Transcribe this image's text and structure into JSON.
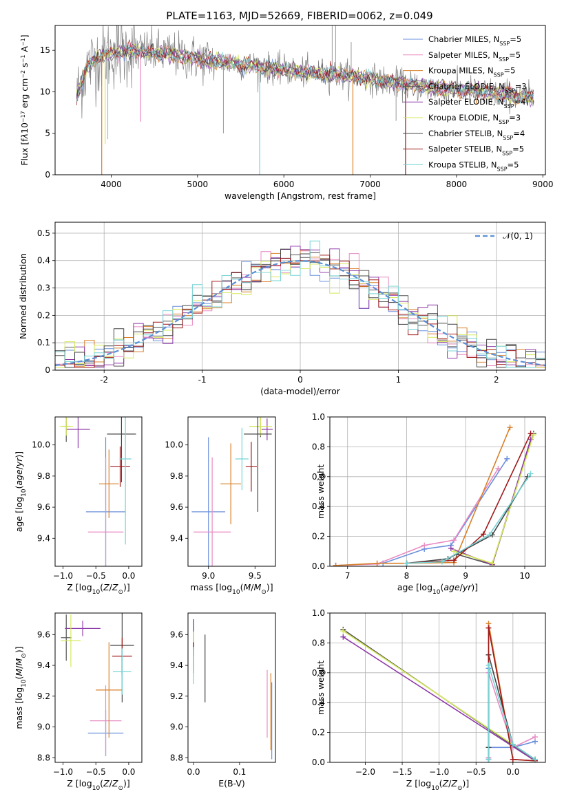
{
  "figure": {
    "title": "PLATE=1163, MJD=52669, FIBERID=0062, z=0.049"
  },
  "colors": {
    "Chabrier MILES": "#6a8fdc",
    "Salpeter MILES": "#e88ac2",
    "Kroupa MILES": "#d9802a",
    "Chabrier ELODIE": "#555555",
    "Salpeter ELODIE": "#8e3aa8",
    "Kroupa ELODIE": "#d6e85a",
    "Chabrier STELIB": "#444444",
    "Salpeter STELIB": "#a01818",
    "Kroupa STELIB": "#76d3d6"
  },
  "chart_data": [
    {
      "id": "spectrum",
      "type": "line",
      "xlabel": "wavelength [Angstrom, rest frame]",
      "ylabel_html": "Flux [f<tspan font-style='italic'>λ</tspan>10<tspan baseline-shift='super' font-size='8'>−17</tspan> erg cm<tspan baseline-shift='super' font-size='8'>−2</tspan> s<tspan baseline-shift='super' font-size='8'>−1</tspan> A<tspan baseline-shift='super' font-size='8'>−1</tspan>]",
      "xlim": [
        3350,
        9030
      ],
      "ylim": [
        0,
        18
      ],
      "xticks": [
        4000,
        5000,
        6000,
        7000,
        8000,
        9000
      ],
      "yticks": [
        0,
        5,
        10,
        15
      ],
      "grid": false,
      "legend": "top-right",
      "legend_entries": [
        {
          "model": "Chabrier MILES",
          "label": "Chabrier MILES, N",
          "sub": "SSP",
          "n": "=5"
        },
        {
          "model": "Salpeter MILES",
          "label": "Salpeter MILES, N",
          "sub": "SSP",
          "n": "=5"
        },
        {
          "model": "Kroupa MILES",
          "label": "Kroupa MILES, N",
          "sub": "SSP",
          "n": "=5"
        },
        {
          "model": "Chabrier ELODIE",
          "label": "Chabrier ELODIE, N",
          "sub": "SSP",
          "n": "=3"
        },
        {
          "model": "Salpeter ELODIE",
          "label": "Salpeter ELODIE, N",
          "sub": "SSP",
          "n": "=4"
        },
        {
          "model": "Kroupa ELODIE",
          "label": "Kroupa ELODIE, N",
          "sub": "SSP",
          "n": "=3"
        },
        {
          "model": "Chabrier STELIB",
          "label": "Chabrier STELIB, N",
          "sub": "SSP",
          "n": "=4"
        },
        {
          "model": "Salpeter STELIB",
          "label": "Salpeter STELIB, N",
          "sub": "SSP",
          "n": "=5"
        },
        {
          "model": "Kroupa STELIB",
          "label": "Kroupa STELIB, N",
          "sub": "SSP",
          "n": "=5"
        }
      ],
      "continuum": {
        "x": [
          3600,
          3650,
          3700,
          3800,
          3900,
          4000,
          4100,
          4200,
          4300,
          4500,
          4700,
          5000,
          5300,
          5600,
          6000,
          6300,
          6600,
          7000,
          7400,
          7800,
          8200,
          8600,
          8900
        ],
        "y": [
          9.4,
          11.0,
          12.6,
          13.8,
          14.4,
          14.6,
          14.8,
          15.0,
          14.9,
          14.7,
          14.5,
          14.0,
          13.6,
          13.2,
          12.6,
          12.3,
          12.1,
          11.6,
          10.9,
          10.4,
          10.1,
          9.7,
          9.2
        ]
      },
      "data_spikes": [
        {
          "x": 5300,
          "y": 5.0
        },
        {
          "x": 6560,
          "y": 18.0
        },
        {
          "x": 6600,
          "y": 18.0
        },
        {
          "x": 6780,
          "y": 16.0
        },
        {
          "x": 7300,
          "y": 6.5
        },
        {
          "x": 8580,
          "y": 8.3
        }
      ],
      "model_drops": [
        {
          "x": 3890,
          "y": 0,
          "model": "Kroupa MILES"
        },
        {
          "x": 3960,
          "y": 4.3,
          "model": "Kroupa STELIB"
        },
        {
          "x": 3930,
          "y": 3.7,
          "model": "Kroupa ELODIE"
        },
        {
          "x": 4340,
          "y": 6.4,
          "model": "Salpeter MILES"
        },
        {
          "x": 5720,
          "y": 0,
          "model": "Kroupa STELIB"
        },
        {
          "x": 6800,
          "y": 0,
          "model": "Kroupa MILES"
        },
        {
          "x": 7410,
          "y": 0,
          "model": "Salpeter STELIB"
        }
      ]
    },
    {
      "id": "residuals",
      "type": "histogram",
      "xlabel": "(data-model)/error",
      "ylabel": "Normed distribution",
      "xlim": [
        -2.5,
        2.5
      ],
      "ylim": [
        0,
        0.54
      ],
      "xticks": [
        -2,
        -1,
        0,
        1,
        2
      ],
      "yticks": [
        0.0,
        0.1,
        0.2,
        0.3,
        0.4,
        0.5
      ],
      "grid": true,
      "legend": "top-right",
      "legend_label": "(0, 1)",
      "legend_prefix": "𝒩",
      "bin_width": 0.1,
      "reference_curve": "normal(0,1)"
    },
    {
      "id": "age-vs-Z",
      "type": "errorbar",
      "xlabel": "Z [log<tspan baseline-shift='sub' font-size='9'>10</tspan>(<tspan font-style='italic'>Z</tspan>/<tspan font-style='italic'>Z</tspan><tspan baseline-shift='sub' font-size='9'>⊙</tspan>)]",
      "ylabel": "age  [log<tspan baseline-shift='sub' font-size='9'>10</tspan>(<tspan font-style='italic'>age</tspan>/<tspan font-style='italic'>yr</tspan>)]",
      "xlim": [
        -1.12,
        0.2
      ],
      "ylim": [
        9.22,
        10.18
      ],
      "xticks": [
        -1.0,
        -0.5,
        0.0
      ],
      "xticklabels": [
        "−1.0",
        "−0.5",
        "0.0"
      ],
      "yticks": [
        9.4,
        9.6,
        9.8,
        10.0
      ],
      "yticklabels": [
        "9.4",
        "9.6",
        "9.8",
        "10.0"
      ],
      "grid": false,
      "points": [
        {
          "model": "Chabrier MILES",
          "x": -0.35,
          "xerr": 0.3,
          "y": 9.57,
          "yerr": 0.48
        },
        {
          "model": "Salpeter MILES",
          "x": -0.35,
          "xerr": 0.27,
          "y": 9.44,
          "yerr": 0.48
        },
        {
          "model": "Kroupa MILES",
          "x": -0.3,
          "xerr": 0.15,
          "y": 9.75,
          "yerr": 0.22
        },
        {
          "model": "Chabrier ELODIE",
          "x": -0.95,
          "xerr": 0.06,
          "y": 10.12,
          "yerr": 0.1
        },
        {
          "model": "Salpeter ELODIE",
          "x": -0.77,
          "xerr": 0.18,
          "y": 10.1,
          "yerr": 0.12
        },
        {
          "model": "Kroupa ELODIE",
          "x": -0.95,
          "xerr": 0.1,
          "y": 10.12,
          "yerr": 0.06
        },
        {
          "model": "Chabrier STELIB",
          "x": -0.11,
          "xerr": 0.22,
          "y": 10.07,
          "yerr": 0.31
        },
        {
          "model": "Salpeter STELIB",
          "x": -0.13,
          "xerr": 0.15,
          "y": 9.86,
          "yerr": 0.13
        },
        {
          "model": "Kroupa STELIB",
          "x": -0.05,
          "xerr": 0.09,
          "y": 9.91,
          "yerr": 0.55
        }
      ]
    },
    {
      "id": "age-vs-mass",
      "type": "errorbar",
      "xlabel": "mass [log<tspan baseline-shift='sub' font-size='9'>10</tspan>(<tspan font-style='italic'>M</tspan>/<tspan font-style='italic'>M</tspan><tspan baseline-shift='sub' font-size='9'>⊙</tspan>)]",
      "xlim": [
        8.78,
        9.72
      ],
      "ylim": [
        9.22,
        10.18
      ],
      "xticks": [
        9.0,
        9.5
      ],
      "xticklabels": [
        "9.0",
        "9.5"
      ],
      "yticks": [
        9.4,
        9.6,
        9.8,
        10.0
      ],
      "yticklabels": [
        "9.4",
        "9.6",
        "9.8",
        "10.0"
      ],
      "grid": false,
      "points": [
        {
          "model": "Chabrier MILES",
          "x": 9.0,
          "xerr": 0.18,
          "y": 9.57,
          "yerr": 0.48
        },
        {
          "model": "Salpeter MILES",
          "x": 9.04,
          "xerr": 0.2,
          "y": 9.44,
          "yerr": 0.48
        },
        {
          "model": "Kroupa MILES",
          "x": 9.24,
          "xerr": 0.11,
          "y": 9.75,
          "yerr": 0.26
        },
        {
          "model": "Chabrier ELODIE",
          "x": 9.56,
          "xerr": 0.12,
          "y": 10.12,
          "yerr": 0.07
        },
        {
          "model": "Salpeter ELODIE",
          "x": 9.63,
          "xerr": 0.06,
          "y": 10.1,
          "yerr": 0.07
        },
        {
          "model": "Kroupa ELODIE",
          "x": 9.56,
          "xerr": 0.12,
          "y": 10.12,
          "yerr": 0.06
        },
        {
          "model": "Chabrier STELIB",
          "x": 9.53,
          "xerr": 0.15,
          "y": 10.07,
          "yerr": 0.5
        },
        {
          "model": "Salpeter STELIB",
          "x": 9.46,
          "xerr": 0.06,
          "y": 9.86,
          "yerr": 0.16
        },
        {
          "model": "Kroupa STELIB",
          "x": 9.36,
          "xerr": 0.07,
          "y": 9.91,
          "yerr": 0.2
        }
      ]
    },
    {
      "id": "weight-vs-age",
      "type": "line",
      "xlabel": "age  [log<tspan baseline-shift='sub' font-size='9'>10</tspan>(<tspan font-style='italic'>age</tspan>/<tspan font-style='italic'>yr</tspan>)]",
      "ylabel": "mass weight",
      "xlim": [
        6.7,
        10.35
      ],
      "ylim": [
        0,
        1.0
      ],
      "xticks": [
        7,
        8,
        9,
        10
      ],
      "xticklabels": [
        "7",
        "8",
        "9",
        "10"
      ],
      "yticks": [
        0.0,
        0.2,
        0.4,
        0.6,
        0.8,
        1.0
      ],
      "yticklabels": [
        "0.0",
        "0.2",
        "0.4",
        "0.6",
        "0.8",
        "1.0"
      ],
      "grid": true,
      "series": [
        {
          "model": "Chabrier MILES",
          "x": [
            6.8,
            7.6,
            8.3,
            8.75,
            9.7
          ],
          "y": [
            0.005,
            0.02,
            0.115,
            0.14,
            0.72
          ]
        },
        {
          "model": "Salpeter MILES",
          "x": [
            6.8,
            7.5,
            8.3,
            8.8,
            9.55
          ],
          "y": [
            0.005,
            0.015,
            0.14,
            0.175,
            0.655
          ]
        },
        {
          "model": "Kroupa MILES",
          "x": [
            6.8,
            7.5,
            8.0,
            8.8,
            9.75
          ],
          "y": [
            0.005,
            0.02,
            0.02,
            0.025,
            0.93
          ]
        },
        {
          "model": "Chabrier ELODIE",
          "x": [
            8.85,
            9.45,
            10.15
          ],
          "y": [
            0.08,
            0.01,
            0.89
          ]
        },
        {
          "model": "Salpeter ELODIE",
          "x": [
            8.75,
            9.45,
            10.1
          ],
          "y": [
            0.12,
            0.01,
            0.85
          ]
        },
        {
          "model": "Kroupa ELODIE",
          "x": [
            8.8,
            9.45,
            10.15
          ],
          "y": [
            0.1,
            0.02,
            0.88
          ]
        },
        {
          "model": "Chabrier STELIB",
          "x": [
            8.0,
            8.7,
            9.45,
            10.05
          ],
          "y": [
            0.02,
            0.05,
            0.21,
            0.6
          ]
        },
        {
          "model": "Salpeter STELIB",
          "x": [
            8.0,
            8.8,
            9.3,
            10.1
          ],
          "y": [
            0.02,
            0.04,
            0.215,
            0.89
          ]
        },
        {
          "model": "Kroupa STELIB",
          "x": [
            8.0,
            8.6,
            9.4,
            10.1
          ],
          "y": [
            0.02,
            0.03,
            0.21,
            0.62
          ]
        }
      ]
    },
    {
      "id": "mass-vs-Z",
      "type": "errorbar",
      "xlabel": "Z [log<tspan baseline-shift='sub' font-size='9'>10</tspan>(<tspan font-style='italic'>Z</tspan>/<tspan font-style='italic'>Z</tspan><tspan baseline-shift='sub' font-size='9'>⊙</tspan>)]",
      "ylabel": "mass [log<tspan baseline-shift='sub' font-size='9'>10</tspan>(<tspan font-style='italic'>M</tspan>/<tspan font-style='italic'>M</tspan><tspan baseline-shift='sub' font-size='9'>⊙</tspan>)]",
      "xlim": [
        -1.12,
        0.2
      ],
      "ylim": [
        8.77,
        9.74
      ],
      "xticks": [
        -1.0,
        -0.5,
        0.0
      ],
      "xticklabels": [
        "−1.0",
        "−0.5",
        "0.0"
      ],
      "yticks": [
        8.8,
        9.0,
        9.2,
        9.4,
        9.6
      ],
      "yticklabels": [
        "8.8",
        "9.0",
        "9.2",
        "9.4",
        "9.6"
      ],
      "grid": false,
      "points": [
        {
          "model": "Chabrier MILES",
          "x": -0.35,
          "xerr": 0.27,
          "y": 8.96,
          "yerr": 0.15
        },
        {
          "model": "Salpeter MILES",
          "x": -0.35,
          "xerr": 0.24,
          "y": 9.04,
          "yerr": 0.23
        },
        {
          "model": "Kroupa MILES",
          "x": -0.3,
          "xerr": 0.2,
          "y": 9.24,
          "yerr": 0.31
        },
        {
          "model": "Chabrier ELODIE",
          "x": -0.95,
          "xerr": 0.08,
          "y": 9.58,
          "yerr": 0.15
        },
        {
          "model": "Salpeter ELODIE",
          "x": -0.7,
          "xerr": 0.27,
          "y": 9.64,
          "yerr": 0.05
        },
        {
          "model": "Kroupa ELODIE",
          "x": -0.88,
          "xerr": 0.15,
          "y": 9.56,
          "yerr": 0.17
        },
        {
          "model": "Chabrier STELIB",
          "x": -0.1,
          "xerr": 0.18,
          "y": 9.53,
          "yerr": 0.37
        },
        {
          "model": "Salpeter STELIB",
          "x": -0.1,
          "xerr": 0.15,
          "y": 9.46,
          "yerr": 0.12
        },
        {
          "model": "Kroupa STELIB",
          "x": -0.1,
          "xerr": 0.14,
          "y": 9.36,
          "yerr": 0.15
        }
      ]
    },
    {
      "id": "mass-vs-EBV",
      "type": "errorbar",
      "xlabel": "E(B-V)",
      "xlim": [
        -0.012,
        0.178
      ],
      "ylim": [
        8.77,
        9.74
      ],
      "xticks": [
        0.0,
        0.1
      ],
      "xticklabels": [
        "0.0",
        "0.1"
      ],
      "yticks": [
        8.8,
        9.0,
        9.2,
        9.4,
        9.6
      ],
      "yticklabels": [
        "8.8",
        "9.0",
        "9.2",
        "9.4",
        "9.6"
      ],
      "grid": false,
      "points": [
        {
          "model": "Chabrier MILES",
          "x": 0.17,
          "xerr": 0,
          "y": 9.04,
          "yerr": 0.25
        },
        {
          "model": "Salpeter MILES",
          "x": 0.16,
          "xerr": 0,
          "y": 9.15,
          "yerr": 0.22
        },
        {
          "model": "Kroupa MILES",
          "x": 0.168,
          "xerr": 0,
          "y": 9.1,
          "yerr": 0.25
        },
        {
          "model": "Chabrier ELODIE",
          "x": 0.0,
          "xerr": 0,
          "y": 9.58,
          "yerr": 0.12
        },
        {
          "model": "Salpeter ELODIE",
          "x": 0.0,
          "xerr": 0,
          "y": 9.6,
          "yerr": 0.1
        },
        {
          "model": "Kroupa ELODIE",
          "x": 0.0,
          "xerr": 0,
          "y": 9.5,
          "yerr": 0.12
        },
        {
          "model": "Chabrier STELIB",
          "x": 0.025,
          "xerr": 0,
          "y": 9.38,
          "yerr": 0.22
        },
        {
          "model": "Salpeter STELIB",
          "x": 0.0,
          "xerr": 0,
          "y": 9.45,
          "yerr": 0.1
        },
        {
          "model": "Kroupa STELIB",
          "x": 0.0,
          "xerr": 0,
          "y": 9.4,
          "yerr": 0.12
        }
      ]
    },
    {
      "id": "weight-vs-Z",
      "type": "line",
      "xlabel": "Z [log<tspan baseline-shift='sub' font-size='9'>10</tspan>(<tspan font-style='italic'>Z</tspan>/<tspan font-style='italic'>Z</tspan><tspan baseline-shift='sub' font-size='9'>⊙</tspan>)]",
      "ylabel": "mass weight",
      "xlim": [
        -2.48,
        0.44
      ],
      "ylim": [
        0,
        1.0
      ],
      "xticks": [
        -2.0,
        -1.5,
        -1.0,
        -0.5,
        0.0
      ],
      "xticklabels": [
        "−2.0",
        "−1.5",
        "−1.0",
        "−0.5",
        "0.0"
      ],
      "yticks": [
        0.0,
        0.2,
        0.4,
        0.6,
        0.8,
        1.0
      ],
      "yticklabels": [
        "0.0",
        "0.2",
        "0.4",
        "0.6",
        "0.8",
        "1.0"
      ],
      "grid": true,
      "series": [
        {
          "model": "Chabrier MILES",
          "x": [
            -0.33,
            -0.33,
            -0.33,
            0.0,
            0.3
          ],
          "y": [
            0.03,
            0.63,
            0.1,
            0.1,
            0.14
          ]
        },
        {
          "model": "Salpeter MILES",
          "x": [
            -0.33,
            -0.33,
            0.0,
            0.3
          ],
          "y": [
            0.03,
            0.6,
            0.1,
            0.17
          ]
        },
        {
          "model": "Kroupa MILES",
          "x": [
            -0.33,
            -0.33,
            0.0,
            0.3
          ],
          "y": [
            0.02,
            0.93,
            0.02,
            0.01
          ]
        },
        {
          "model": "Chabrier ELODIE",
          "x": [
            -2.3,
            0.3
          ],
          "y": [
            0.89,
            0.01
          ]
        },
        {
          "model": "Salpeter ELODIE",
          "x": [
            -2.3,
            0.3
          ],
          "y": [
            0.84,
            0.01
          ]
        },
        {
          "model": "Kroupa ELODIE",
          "x": [
            -2.3,
            0.3
          ],
          "y": [
            0.88,
            0.02
          ]
        },
        {
          "model": "Chabrier STELIB",
          "x": [
            -0.33,
            -0.33,
            0.0,
            0.3
          ],
          "y": [
            0.1,
            0.72,
            0.12,
            0.02
          ]
        },
        {
          "model": "Salpeter STELIB",
          "x": [
            -0.33,
            -0.33,
            0.0,
            0.3
          ],
          "y": [
            0.02,
            0.9,
            0.02,
            0.01
          ]
        },
        {
          "model": "Kroupa STELIB",
          "x": [
            -0.33,
            -0.33,
            0.0,
            0.3
          ],
          "y": [
            0.02,
            0.65,
            0.12,
            0.02
          ]
        }
      ]
    }
  ]
}
